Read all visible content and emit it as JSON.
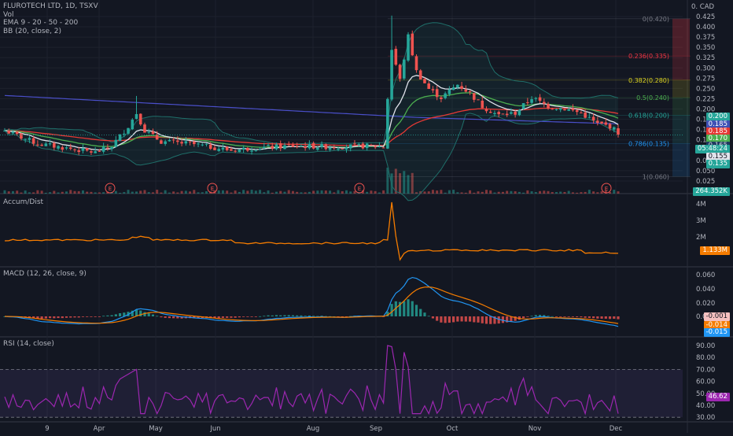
{
  "header": {
    "symbol_line": "FLUROTECH LTD, 1D, TSXV",
    "indicators": [
      "Vol",
      "EMA 9 - 20 - 50 - 200",
      "BB (20, close, 2)"
    ],
    "currency": "0. CAD"
  },
  "price_axis": {
    "ticks": [
      "0.425",
      "0.400",
      "0.375",
      "0.350",
      "0.325",
      "0.300",
      "0.275",
      "0.250",
      "0.225",
      "0.200",
      "0.175",
      "0.150",
      "0.125",
      "0.100",
      "0.075",
      "0.050",
      "0.025"
    ],
    "labels": [
      {
        "text": "0.200",
        "color": "#26a69a"
      },
      {
        "text": "0.185",
        "color": "#3f51b5"
      },
      {
        "text": "0.185",
        "color": "#e53935"
      },
      {
        "text": "0.170",
        "color": "#4caf50"
      },
      {
        "text": "0.165",
        "color": "#1e3a5f"
      },
      {
        "text": "05:48:24",
        "color": "#26a69a"
      },
      {
        "text": "0.155",
        "color": "#e0e3eb"
      },
      {
        "text": "0.135",
        "color": "#26a69a"
      },
      {
        "text": "264.352K",
        "color": "#26a69a"
      }
    ]
  },
  "fib_levels": [
    {
      "label": "0(0.420)",
      "price": 0.42,
      "color": "#787b86"
    },
    {
      "label": "0.236(0.335)",
      "price": 0.335,
      "color": "#f23645"
    },
    {
      "label": "0.382(0.280)",
      "price": 0.28,
      "color": "#dcd321"
    },
    {
      "label": "0.5(0.240)",
      "price": 0.24,
      "color": "#4caf50"
    },
    {
      "label": "0.618(0.200)",
      "price": 0.2,
      "color": "#26a69a"
    },
    {
      "label": "0.786(0.135)",
      "price": 0.135,
      "color": "#2196f3"
    },
    {
      "label": "1(0.060)",
      "price": 0.06,
      "color": "#787b86"
    }
  ],
  "earnings_markers": [
    "E",
    "E",
    "E",
    "E"
  ],
  "accum": {
    "title": "Accum/Dist",
    "ticks": [
      "4M",
      "3M",
      "2M"
    ],
    "value_label": "1.133M",
    "color": "#f57c00"
  },
  "macd": {
    "title": "MACD (12, 26, close, 9)",
    "ticks": [
      "0.060",
      "0.040",
      "0.020",
      "0.000"
    ],
    "value_labels": [
      {
        "text": "-0.001",
        "color": "#f5c0c0"
      },
      {
        "text": "-0.014",
        "color": "#f57c00"
      },
      {
        "text": "-0.015",
        "color": "#2196f3"
      }
    ]
  },
  "rsi": {
    "title": "RSI (14, close)",
    "ticks": [
      "90.00",
      "80.00",
      "70.00",
      "60.00",
      "50.00",
      "40.00",
      "30.00"
    ],
    "value_label": "46.62",
    "color": "#9c27b0"
  },
  "time_axis": {
    "labels": [
      "9",
      "Apr",
      "May",
      "Jun",
      "Aug",
      "Sep",
      "Oct",
      "Nov",
      "Dec"
    ]
  }
}
